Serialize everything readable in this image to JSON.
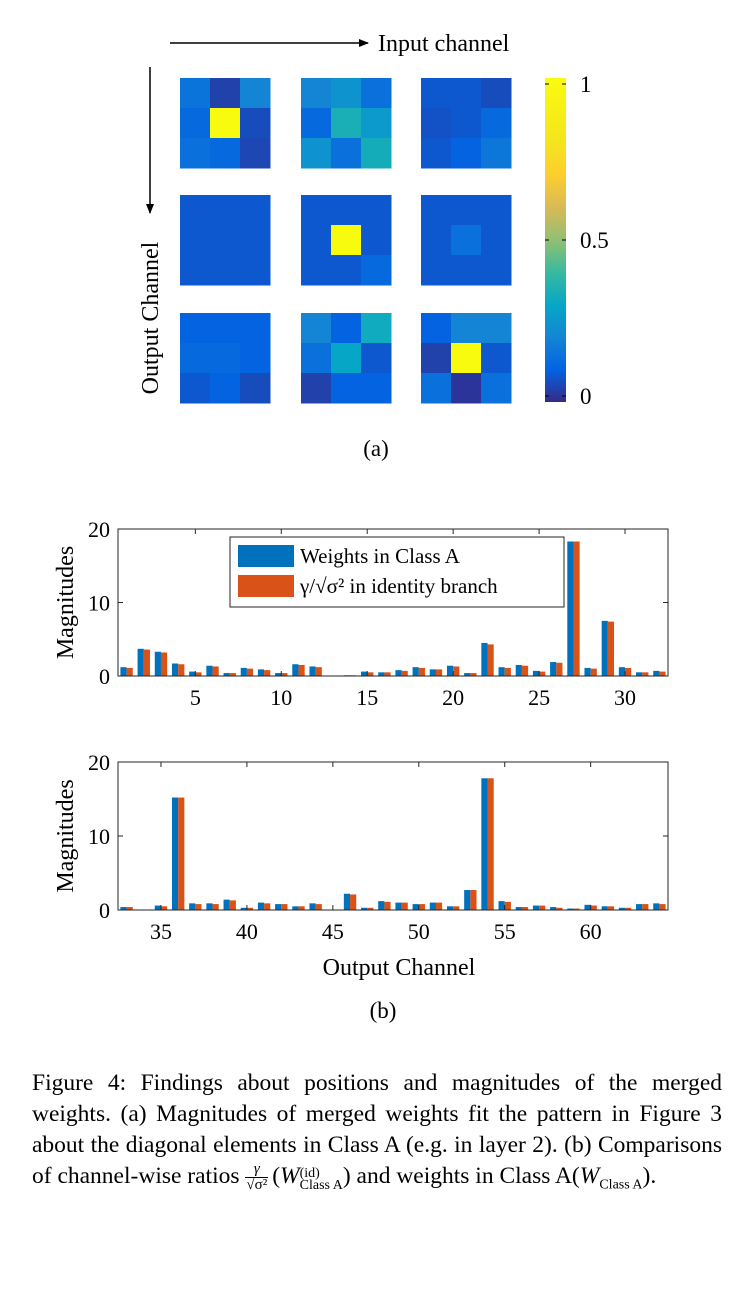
{
  "panel_a": {
    "input_axis_label": "Input channel",
    "output_axis_label": "Output Channel",
    "sublabel": "(a)",
    "colorbar": {
      "ticks": [
        {
          "value": 1,
          "label": "1"
        },
        {
          "value": 0.5,
          "label": "0.5"
        },
        {
          "value": 0,
          "label": "0"
        }
      ]
    }
  },
  "panel_b": {
    "sublabel": "(b)",
    "xlabel": "Output Channel"
  },
  "chart_data": [
    {
      "type": "heatmap",
      "description_grid": "3x3 grid of 3x3 kernels, rows = output channel, cols = input channel",
      "kernels": [
        [
          [
            [
              0.15,
              0.04,
              0.2
            ],
            [
              0.12,
              1.0,
              0.06
            ],
            [
              0.14,
              0.12,
              0.05
            ]
          ],
          [
            [
              0.2,
              0.24,
              0.14
            ],
            [
              0.12,
              0.34,
              0.26
            ],
            [
              0.24,
              0.14,
              0.33
            ]
          ],
          [
            [
              0.08,
              0.08,
              0.06
            ],
            [
              0.07,
              0.08,
              0.12
            ],
            [
              0.08,
              0.1,
              0.16
            ]
          ]
        ],
        [
          [
            [
              0.08,
              0.08,
              0.08
            ],
            [
              0.08,
              0.08,
              0.08
            ],
            [
              0.08,
              0.08,
              0.08
            ]
          ],
          [
            [
              0.08,
              0.08,
              0.08
            ],
            [
              0.08,
              1.0,
              0.08
            ],
            [
              0.08,
              0.08,
              0.12
            ]
          ],
          [
            [
              0.08,
              0.08,
              0.08
            ],
            [
              0.08,
              0.14,
              0.08
            ],
            [
              0.08,
              0.08,
              0.08
            ]
          ]
        ],
        [
          [
            [
              0.1,
              0.1,
              0.1
            ],
            [
              0.12,
              0.12,
              0.1
            ],
            [
              0.08,
              0.1,
              0.06
            ]
          ],
          [
            [
              0.2,
              0.1,
              0.32
            ],
            [
              0.14,
              0.3,
              0.08
            ],
            [
              0.04,
              0.1,
              0.1
            ]
          ],
          [
            [
              0.1,
              0.2,
              0.2
            ],
            [
              0.04,
              1.0,
              0.08
            ],
            [
              0.14,
              0.02,
              0.14
            ]
          ]
        ]
      ],
      "colorbar_range": [
        0,
        1
      ]
    },
    {
      "type": "bar",
      "ylabel": "Magnitudes",
      "xlabel": "",
      "xlim": [
        0.5,
        32.5
      ],
      "ylim": [
        0,
        20
      ],
      "xticks": [
        5,
        10,
        15,
        20,
        25,
        30
      ],
      "yticks": [
        0,
        10,
        20
      ],
      "legend": {
        "placement": "top-center"
      },
      "x": [
        1,
        2,
        3,
        4,
        5,
        6,
        7,
        8,
        9,
        10,
        11,
        12,
        13,
        14,
        15,
        16,
        17,
        18,
        19,
        20,
        21,
        22,
        23,
        24,
        25,
        26,
        27,
        28,
        29,
        30,
        31,
        32
      ],
      "series": [
        {
          "name": "Weights in Class A",
          "color": "#0072BD",
          "values": [
            1.2,
            3.7,
            3.3,
            1.7,
            0.6,
            1.4,
            0.4,
            1.1,
            0.9,
            0.4,
            1.6,
            1.3,
            0.05,
            0.1,
            0.6,
            0.5,
            0.8,
            1.2,
            0.9,
            1.4,
            0.4,
            4.5,
            1.2,
            1.5,
            0.7,
            1.9,
            18.3,
            1.1,
            7.5,
            1.2,
            0.5,
            0.7
          ]
        },
        {
          "name": "γ/√σ² in identity branch",
          "color": "#D95319",
          "values": [
            1.1,
            3.6,
            3.2,
            1.6,
            0.5,
            1.3,
            0.4,
            1.0,
            0.8,
            0.4,
            1.5,
            1.2,
            0.05,
            0.1,
            0.5,
            0.5,
            0.7,
            1.1,
            0.9,
            1.3,
            0.4,
            4.3,
            1.1,
            1.4,
            0.6,
            1.8,
            18.3,
            1.0,
            7.4,
            1.1,
            0.5,
            0.6
          ]
        }
      ]
    },
    {
      "type": "bar",
      "ylabel": "Magnitudes",
      "xlabel": "Output Channel",
      "xlim": [
        32.5,
        64.5
      ],
      "ylim": [
        0,
        20
      ],
      "xticks": [
        35,
        40,
        45,
        50,
        55,
        60
      ],
      "yticks": [
        0,
        10,
        20
      ],
      "x": [
        33,
        34,
        35,
        36,
        37,
        38,
        39,
        40,
        41,
        42,
        43,
        44,
        45,
        46,
        47,
        48,
        49,
        50,
        51,
        52,
        53,
        54,
        55,
        56,
        57,
        58,
        59,
        60,
        61,
        62,
        63,
        64
      ],
      "series": [
        {
          "name": "Weights in Class A",
          "color": "#0072BD",
          "values": [
            0.4,
            0.05,
            0.6,
            15.2,
            0.9,
            0.9,
            1.4,
            0.3,
            1.0,
            0.8,
            0.5,
            0.9,
            0.05,
            2.2,
            0.3,
            1.2,
            1.0,
            0.8,
            1.0,
            0.5,
            2.7,
            17.8,
            1.2,
            0.4,
            0.6,
            0.4,
            0.2,
            0.7,
            0.5,
            0.3,
            0.8,
            0.9
          ]
        },
        {
          "name": "γ/√σ² in identity branch",
          "color": "#D95319",
          "values": [
            0.4,
            0.05,
            0.5,
            15.2,
            0.8,
            0.8,
            1.3,
            0.3,
            0.9,
            0.8,
            0.5,
            0.8,
            0.05,
            2.1,
            0.3,
            1.1,
            1.0,
            0.8,
            1.0,
            0.5,
            2.7,
            17.8,
            1.1,
            0.4,
            0.6,
            0.3,
            0.2,
            0.6,
            0.5,
            0.3,
            0.8,
            0.8
          ]
        }
      ]
    }
  ],
  "caption": {
    "line1": "Figure 4: Findings about positions and magnitudes of the merged weights. (a) Magnitudes of merged weights fit the pattern in Figure 3 about the diagonal elements in Class A (e.g. in layer 2). (b) Comparisons of channel-wise ratios",
    "frac_num": "γ",
    "frac_den": "√σ²",
    "w_open": "(",
    "w_symbol": "W",
    "w_sup": "(id)",
    "w_sub": "Class A",
    "mid": ") and weights in Class A(",
    "w2_symbol": "W",
    "w2_sub": "Class A",
    "end": ")."
  }
}
